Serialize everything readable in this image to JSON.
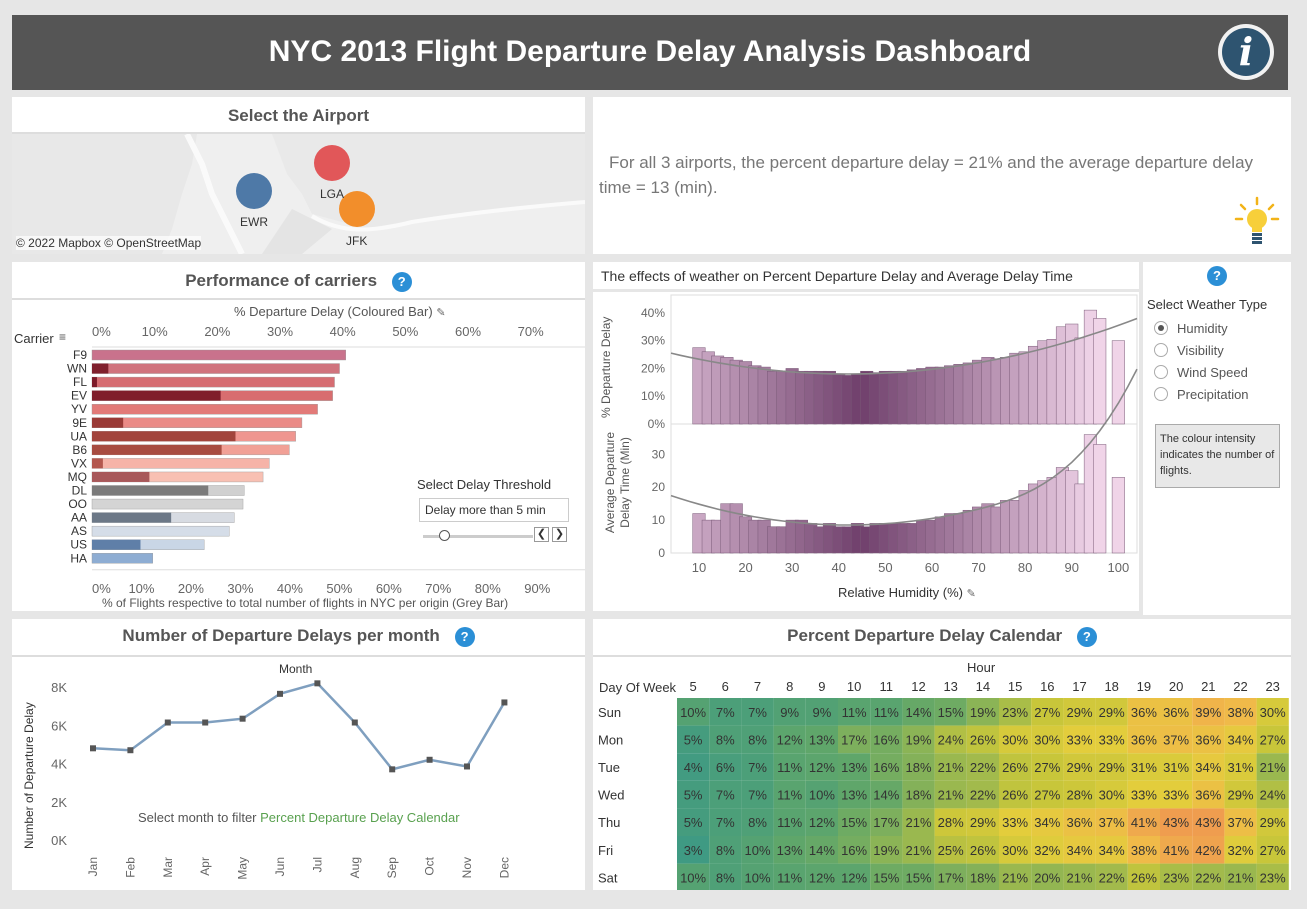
{
  "header": {
    "title": "NYC 2013 Flight Departure Delay Analysis Dashboard",
    "info_icon": "info-icon"
  },
  "airport": {
    "title": "Select the Airport",
    "attribution": "© 2022 Mapbox © OpenStreetMap",
    "points": [
      {
        "label": "EWR",
        "color": "#4e79a7"
      },
      {
        "label": "LGA",
        "color": "#e15759"
      },
      {
        "label": "JFK",
        "color": "#f28e2b"
      }
    ]
  },
  "insight": {
    "text": "For all 3 airports, the percent departure delay = 21% and the average departure delay time = 13 (min).",
    "icon": "lightbulb-icon"
  },
  "carriers": {
    "title": "Performance of carriers",
    "top_axis_title": "% Departure Delay (Coloured Bar)",
    "bottom_axis_title": "% of Flights respective to total number of flights in NYC per origin (Grey Bar)",
    "carrier_header": "Carrier",
    "threshold_label": "Select Delay Threshold",
    "threshold_value": "Delay more than 5 min"
  },
  "weather": {
    "title": "The effects of weather on Percent Departure Delay and Average Delay Time",
    "top_ylabel": "% Departure Delay",
    "bottom_ylabel": "Average Departure Delay Time (Min)",
    "xlabel": "Relative Humidity (%)",
    "selector_title": "Select Weather Type",
    "options": [
      "Humidity",
      "Visibility",
      "Wind Speed",
      "Precipitation"
    ],
    "selected": "Humidity",
    "note": "The colour intensity indicates the number of flights."
  },
  "monthly": {
    "title": "Number of Departure Delays per month",
    "top_label": "Month",
    "ylabel": "Number of Departure Delay",
    "hint_prefix": "Select month to filter",
    "hint_link": "Percent Departure Delay Calendar"
  },
  "calendar": {
    "title": "Percent Departure Delay Calendar",
    "hour_label": "Hour",
    "row_header": "Day Of Week"
  },
  "chart_data": [
    {
      "type": "bar",
      "title": "Performance of carriers",
      "categories": [
        "F9",
        "WN",
        "FL",
        "EV",
        "YV",
        "9E",
        "UA",
        "B6",
        "VX",
        "MQ",
        "DL",
        "OO",
        "AA",
        "AS",
        "US",
        "HA"
      ],
      "xlabel": "% Departure Delay (Coloured Bar)",
      "xlim": [
        0,
        0.75
      ],
      "xticks": [
        "0%",
        "10%",
        "20%",
        "30%",
        "40%",
        "50%",
        "60%",
        "70%"
      ],
      "series": [
        {
          "name": "% Departure Delay (Coloured Bar)",
          "values": [
            0.405,
            0.395,
            0.387,
            0.384,
            0.36,
            0.335,
            0.325,
            0.315,
            0.283,
            0.273,
            0.243,
            0.241,
            0.227,
            0.219,
            0.179,
            0.097
          ]
        },
        {
          "name": "% of Flights respective to total number of flights in NYC per origin (Grey Bar)",
          "values": [
            0.0,
            0.033,
            0.01,
            0.26,
            0.0,
            0.063,
            0.29,
            0.262,
            0.022,
            0.116,
            0.235,
            0.0,
            0.16,
            0.0,
            0.098,
            0.0
          ]
        }
      ],
      "bottom_xlim": [
        0,
        0.95
      ],
      "bottom_xticks": [
        "0%",
        "10%",
        "20%",
        "30%",
        "40%",
        "50%",
        "60%",
        "70%",
        "80%",
        "90%"
      ]
    },
    {
      "type": "bar",
      "title": "% Departure Delay",
      "x": [
        10,
        12,
        14,
        16,
        18,
        20,
        22,
        24,
        26,
        28,
        30,
        32,
        34,
        36,
        38,
        40,
        42,
        44,
        46,
        48,
        50,
        52,
        54,
        56,
        58,
        60,
        62,
        64,
        66,
        68,
        70,
        72,
        74,
        76,
        78,
        80,
        82,
        84,
        86,
        88,
        90,
        92,
        94,
        96,
        100
      ],
      "values": [
        27.5,
        26,
        24.5,
        24,
        23,
        22.5,
        21,
        20.5,
        19,
        19,
        20,
        19,
        19,
        19,
        19,
        18,
        17.5,
        18,
        19,
        18.5,
        19,
        19,
        19,
        19.5,
        20,
        20.5,
        20.5,
        21,
        21.5,
        22,
        23,
        24,
        23.5,
        24,
        25.5,
        26,
        28,
        30,
        30.5,
        35,
        36,
        31,
        41,
        38,
        30
      ],
      "ylabel": "% Departure Delay",
      "ylim": [
        0,
        45
      ],
      "yticks": [
        "0%",
        "10%",
        "20%",
        "30%",
        "40%"
      ]
    },
    {
      "type": "bar",
      "title": "Average Departure Delay Time (Min)",
      "x": [
        10,
        12,
        14,
        16,
        18,
        20,
        22,
        24,
        26,
        28,
        30,
        32,
        34,
        36,
        38,
        40,
        42,
        44,
        46,
        48,
        50,
        52,
        54,
        56,
        58,
        60,
        62,
        64,
        66,
        68,
        70,
        72,
        74,
        76,
        78,
        80,
        82,
        84,
        86,
        88,
        90,
        92,
        94,
        96,
        100
      ],
      "values": [
        12,
        10,
        10,
        15,
        15,
        11,
        10,
        10,
        8,
        8,
        10,
        10,
        9,
        8,
        9,
        8,
        8,
        9,
        8,
        9,
        9,
        9,
        9,
        9,
        10,
        10,
        11,
        12,
        12,
        13,
        14,
        15,
        14,
        16,
        16,
        19,
        21,
        22,
        23,
        26,
        25,
        21,
        36,
        33,
        23
      ],
      "ylabel": "Average Departure Delay Time (Min)",
      "xlabel": "Relative Humidity (%)",
      "xticks": [
        10,
        20,
        30,
        40,
        50,
        60,
        70,
        80,
        90,
        100
      ],
      "ylim": [
        0,
        38
      ],
      "yticks": [
        0,
        10,
        20,
        30
      ]
    },
    {
      "type": "line",
      "title": "Number of Departure Delays per month",
      "categories": [
        "Jan",
        "Feb",
        "Mar",
        "Apr",
        "May",
        "Jun",
        "Jul",
        "Aug",
        "Sep",
        "Oct",
        "Nov",
        "Dec"
      ],
      "values": [
        4850,
        4750,
        6200,
        6200,
        6400,
        7700,
        8250,
        6200,
        3750,
        4250,
        3900,
        7250
      ],
      "ylabel": "Number of Departure Delay",
      "ylim": [
        0,
        9000
      ],
      "yticks": [
        "0K",
        "2K",
        "4K",
        "6K",
        "8K"
      ]
    },
    {
      "type": "heatmap",
      "title": "Percent Departure Delay Calendar",
      "x": [
        "5",
        "6",
        "7",
        "8",
        "9",
        "10",
        "11",
        "12",
        "13",
        "14",
        "15",
        "16",
        "17",
        "18",
        "19",
        "20",
        "21",
        "22",
        "23"
      ],
      "y": [
        "Sun",
        "Mon",
        "Tue",
        "Wed",
        "Thu",
        "Fri",
        "Sat"
      ],
      "xlabel": "Hour",
      "ylabel": "Day Of Week",
      "values": [
        [
          10,
          7,
          7,
          9,
          9,
          11,
          11,
          14,
          15,
          19,
          23,
          27,
          29,
          29,
          36,
          36,
          39,
          38,
          30
        ],
        [
          5,
          8,
          8,
          12,
          13,
          17,
          16,
          19,
          24,
          26,
          30,
          30,
          33,
          33,
          36,
          37,
          36,
          34,
          27
        ],
        [
          4,
          6,
          7,
          11,
          12,
          13,
          16,
          18,
          21,
          22,
          26,
          27,
          29,
          29,
          31,
          31,
          34,
          31,
          21
        ],
        [
          5,
          7,
          7,
          11,
          10,
          13,
          14,
          18,
          21,
          22,
          26,
          27,
          28,
          30,
          33,
          33,
          36,
          29,
          24
        ],
        [
          5,
          7,
          8,
          11,
          12,
          15,
          17,
          21,
          28,
          29,
          33,
          34,
          36,
          37,
          41,
          43,
          43,
          37,
          29
        ],
        [
          3,
          8,
          10,
          13,
          14,
          16,
          19,
          21,
          25,
          26,
          30,
          32,
          34,
          34,
          38,
          41,
          42,
          32,
          27
        ],
        [
          10,
          8,
          10,
          11,
          12,
          12,
          15,
          15,
          17,
          18,
          21,
          20,
          21,
          22,
          26,
          23,
          22,
          21,
          23
        ]
      ]
    }
  ]
}
